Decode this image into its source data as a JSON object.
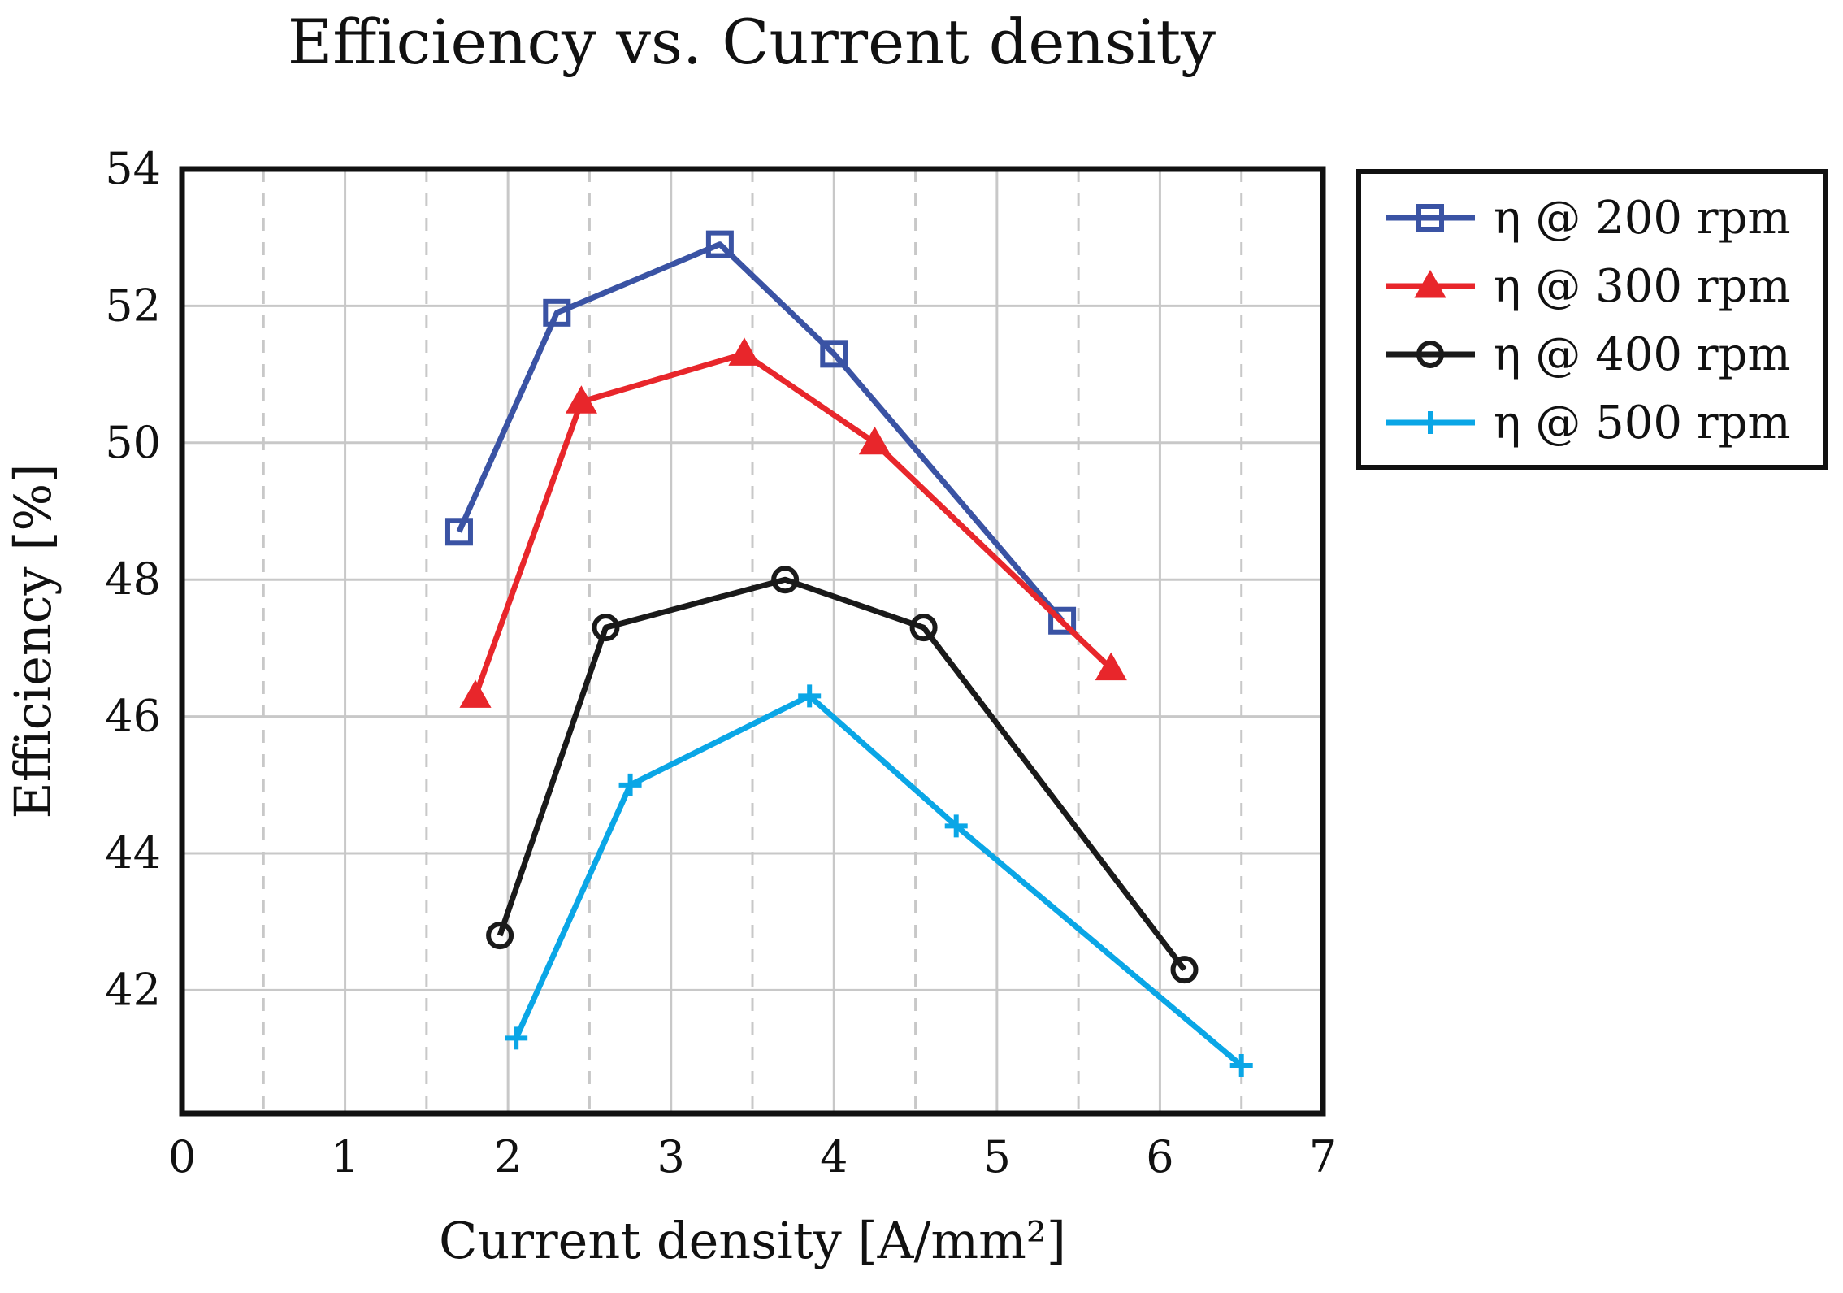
{
  "chart_data": {
    "type": "line",
    "title": "Efficiency vs. Current density",
    "xlabel": "Current density [A/mm²]",
    "ylabel": "Efficiency [%]",
    "xlim": [
      0,
      7
    ],
    "ylim": [
      40.2,
      54
    ],
    "xticks": [
      0,
      1,
      2,
      3,
      4,
      5,
      6,
      7
    ],
    "yticks": [
      42,
      44,
      46,
      48,
      50,
      52,
      54
    ],
    "grid": true,
    "minor_x_grid": [
      0.5,
      1.5,
      2.5,
      3.5,
      4.5,
      5.5,
      6.5
    ],
    "legend_position": "outside-right-top",
    "series": [
      {
        "name": "η @ 200 rpm",
        "color": "#3a53a4",
        "marker": "square",
        "x": [
          1.7,
          2.3,
          3.3,
          4.0,
          5.4
        ],
        "y": [
          48.7,
          51.9,
          52.9,
          51.3,
          47.4
        ]
      },
      {
        "name": "η @ 300 rpm",
        "color": "#e8262b",
        "marker": "triangle",
        "x": [
          1.8,
          2.45,
          3.45,
          4.25,
          5.7
        ],
        "y": [
          46.3,
          50.6,
          51.3,
          50.0,
          46.7
        ]
      },
      {
        "name": "η @ 400 rpm",
        "color": "#1a1a1a",
        "marker": "circle",
        "x": [
          1.95,
          2.6,
          3.7,
          4.55,
          6.15
        ],
        "y": [
          42.8,
          47.3,
          48.0,
          47.3,
          42.3
        ]
      },
      {
        "name": "η @ 500 rpm",
        "color": "#0aa6e6",
        "marker": "plus",
        "x": [
          2.05,
          2.75,
          3.85,
          4.75,
          6.5
        ],
        "y": [
          41.3,
          45.0,
          46.3,
          44.4,
          40.9
        ]
      }
    ]
  }
}
